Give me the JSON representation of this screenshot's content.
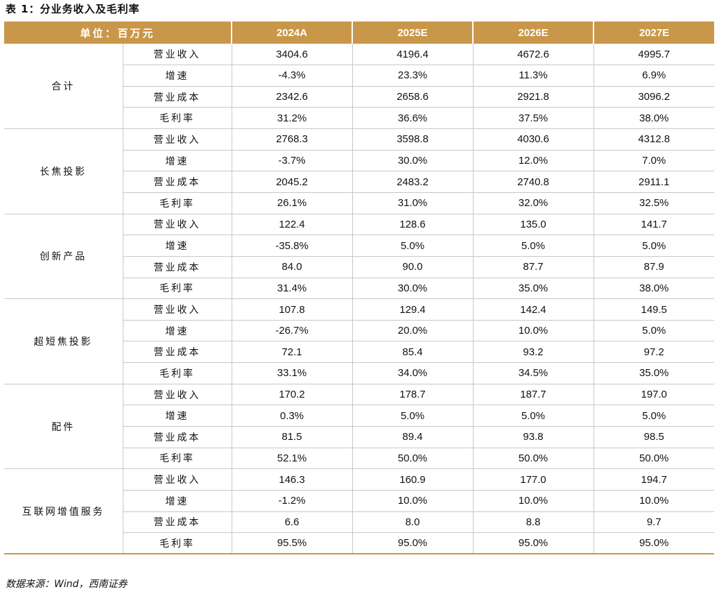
{
  "caption": "表 1：分业务收入及毛利率",
  "header": {
    "unit": "单位：百万元",
    "years": [
      "2024A",
      "2025E",
      "2026E",
      "2027E"
    ]
  },
  "segments": [
    {
      "name": "合计",
      "rows": [
        {
          "metric": "营业收入",
          "values": [
            "3404.6",
            "4196.4",
            "4672.6",
            "4995.7"
          ]
        },
        {
          "metric": "增速",
          "values": [
            "-4.3%",
            "23.3%",
            "11.3%",
            "6.9%"
          ]
        },
        {
          "metric": "营业成本",
          "values": [
            "2342.6",
            "2658.6",
            "2921.8",
            "3096.2"
          ]
        },
        {
          "metric": "毛利率",
          "values": [
            "31.2%",
            "36.6%",
            "37.5%",
            "38.0%"
          ]
        }
      ]
    },
    {
      "name": "长焦投影",
      "rows": [
        {
          "metric": "营业收入",
          "values": [
            "2768.3",
            "3598.8",
            "4030.6",
            "4312.8"
          ]
        },
        {
          "metric": "增速",
          "values": [
            "-3.7%",
            "30.0%",
            "12.0%",
            "7.0%"
          ]
        },
        {
          "metric": "营业成本",
          "values": [
            "2045.2",
            "2483.2",
            "2740.8",
            "2911.1"
          ]
        },
        {
          "metric": "毛利率",
          "values": [
            "26.1%",
            "31.0%",
            "32.0%",
            "32.5%"
          ]
        }
      ]
    },
    {
      "name": "创新产品",
      "rows": [
        {
          "metric": "营业收入",
          "values": [
            "122.4",
            "128.6",
            "135.0",
            "141.7"
          ]
        },
        {
          "metric": "增速",
          "values": [
            "-35.8%",
            "5.0%",
            "5.0%",
            "5.0%"
          ]
        },
        {
          "metric": "营业成本",
          "values": [
            "84.0",
            "90.0",
            "87.7",
            "87.9"
          ]
        },
        {
          "metric": "毛利率",
          "values": [
            "31.4%",
            "30.0%",
            "35.0%",
            "38.0%"
          ]
        }
      ]
    },
    {
      "name": "超短焦投影",
      "rows": [
        {
          "metric": "营业收入",
          "values": [
            "107.8",
            "129.4",
            "142.4",
            "149.5"
          ]
        },
        {
          "metric": "增速",
          "values": [
            "-26.7%",
            "20.0%",
            "10.0%",
            "5.0%"
          ]
        },
        {
          "metric": "营业成本",
          "values": [
            "72.1",
            "85.4",
            "93.2",
            "97.2"
          ]
        },
        {
          "metric": "毛利率",
          "values": [
            "33.1%",
            "34.0%",
            "34.5%",
            "35.0%"
          ]
        }
      ]
    },
    {
      "name": "配件",
      "rows": [
        {
          "metric": "营业收入",
          "values": [
            "170.2",
            "178.7",
            "187.7",
            "197.0"
          ]
        },
        {
          "metric": "增速",
          "values": [
            "0.3%",
            "5.0%",
            "5.0%",
            "5.0%"
          ]
        },
        {
          "metric": "营业成本",
          "values": [
            "81.5",
            "89.4",
            "93.8",
            "98.5"
          ]
        },
        {
          "metric": "毛利率",
          "values": [
            "52.1%",
            "50.0%",
            "50.0%",
            "50.0%"
          ]
        }
      ]
    },
    {
      "name": "互联网增值服务",
      "rows": [
        {
          "metric": "营业收入",
          "values": [
            "146.3",
            "160.9",
            "177.0",
            "194.7"
          ]
        },
        {
          "metric": "增速",
          "values": [
            "-1.2%",
            "10.0%",
            "10.0%",
            "10.0%"
          ]
        },
        {
          "metric": "营业成本",
          "values": [
            "6.6",
            "8.0",
            "8.8",
            "9.7"
          ]
        },
        {
          "metric": "毛利率",
          "values": [
            "95.5%",
            "95.0%",
            "95.0%",
            "95.0%"
          ]
        }
      ]
    }
  ],
  "source": "数据来源：Wind，西南证券",
  "colors": {
    "header_bg": "#c9974a",
    "header_text": "#ffffff",
    "grid": "#c8c8c8"
  }
}
